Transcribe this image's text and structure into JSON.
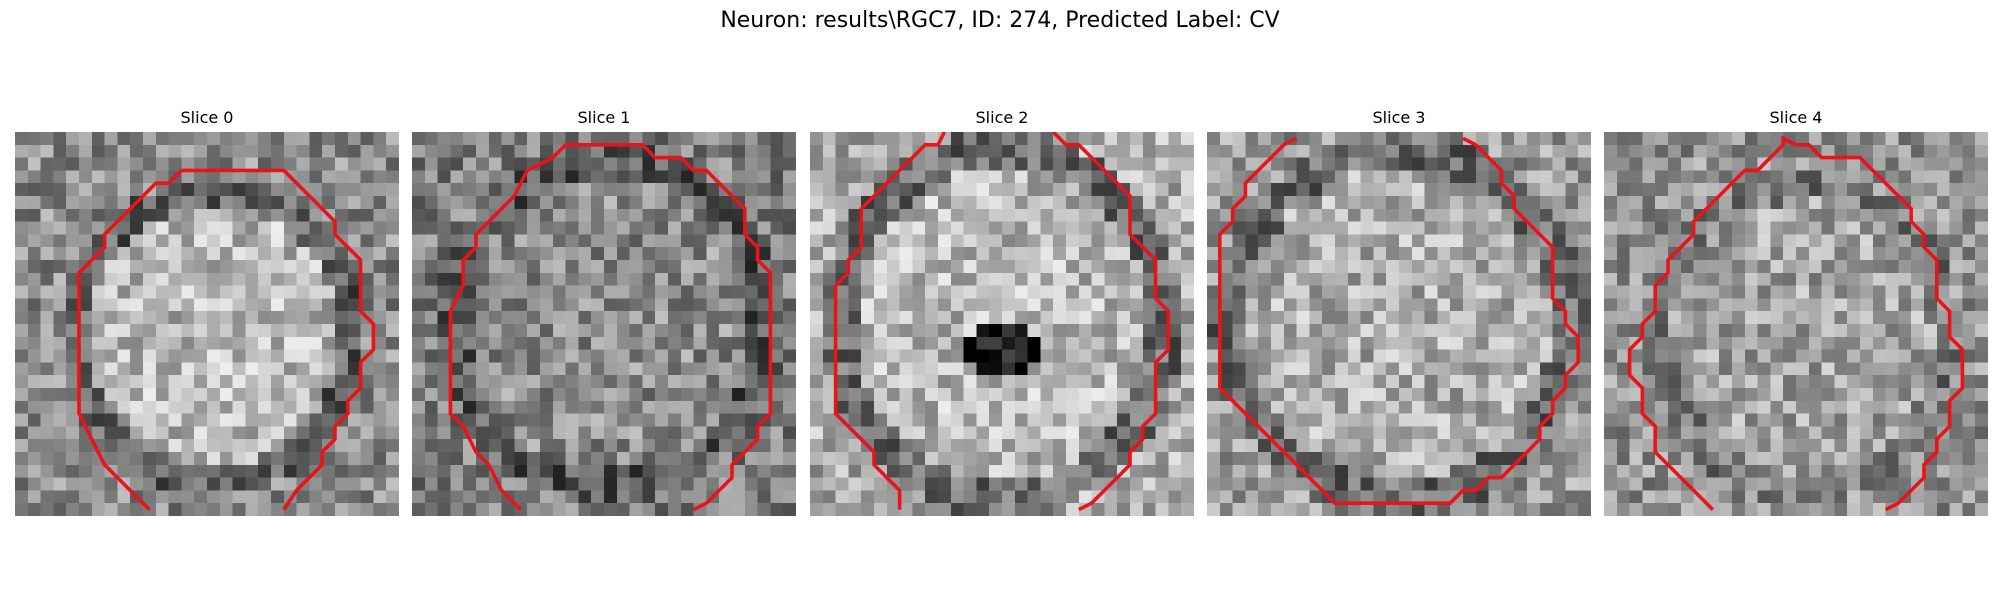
{
  "figure": {
    "title": "Neuron: results\\RGC7, ID: 274, Predicted Label: CV"
  },
  "slices": [
    {
      "label": "Slice 0"
    },
    {
      "label": "Slice 1"
    },
    {
      "label": "Slice 2"
    },
    {
      "label": "Slice 3"
    },
    {
      "label": "Slice 4"
    }
  ],
  "contour_color": "#e8141a",
  "colormap": "grayscale"
}
